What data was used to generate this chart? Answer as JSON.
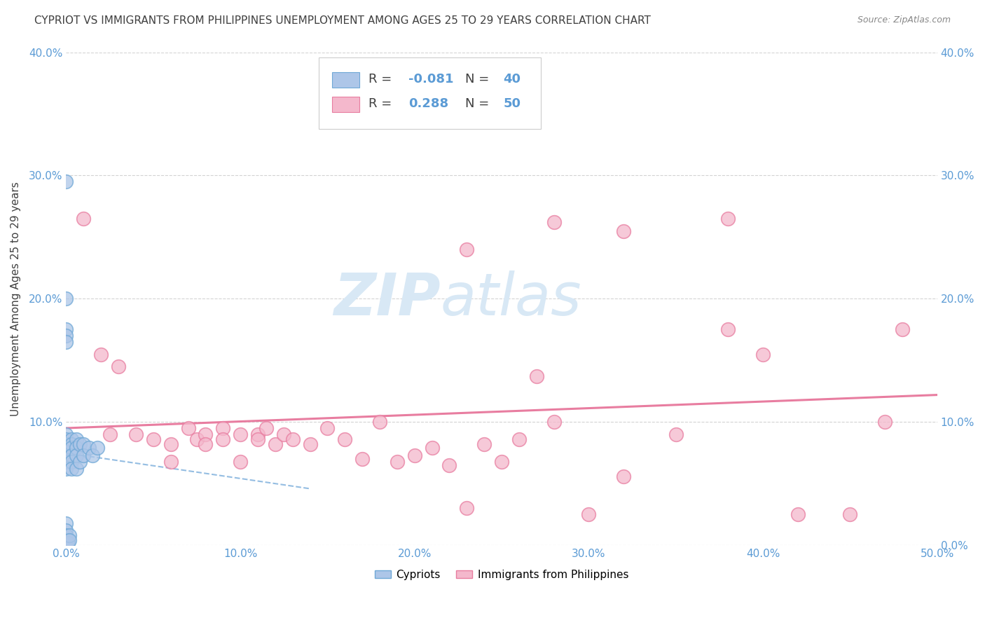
{
  "title": "CYPRIOT VS IMMIGRANTS FROM PHILIPPINES UNEMPLOYMENT AMONG AGES 25 TO 29 YEARS CORRELATION CHART",
  "source": "Source: ZipAtlas.com",
  "ylabel": "Unemployment Among Ages 25 to 29 years",
  "xlim": [
    0.0,
    0.5
  ],
  "ylim": [
    0.0,
    0.4
  ],
  "xticks": [
    0.0,
    0.1,
    0.2,
    0.3,
    0.4,
    0.5
  ],
  "yticks": [
    0.0,
    0.1,
    0.2,
    0.3,
    0.4
  ],
  "xticklabels": [
    "0.0%",
    "10.0%",
    "20.0%",
    "30.0%",
    "40.0%",
    "50.0%"
  ],
  "ylabels_left": [
    "",
    "10.0%",
    "20.0%",
    "30.0%",
    "40.0%"
  ],
  "ylabels_right": [
    "0.0%",
    "10.0%",
    "20.0%",
    "30.0%",
    "40.0%"
  ],
  "color_cypriot_fill": "#adc6e8",
  "color_cypriot_edge": "#6fa8d6",
  "color_philippines_fill": "#f4b8cc",
  "color_philippines_edge": "#e87da0",
  "color_trend_cypriot": "#7aaddb",
  "color_trend_philippines": "#e87da0",
  "axis_color": "#5b9bd5",
  "grid_color": "#c8c8c8",
  "background_color": "#ffffff",
  "title_color": "#404040",
  "source_color": "#888888",
  "watermark_color": "#d8e8f5",
  "cypriot_x": [
    0.0,
    0.0,
    0.0,
    0.0,
    0.0,
    0.0,
    0.0,
    0.0,
    0.0,
    0.0,
    0.0,
    0.0,
    0.0,
    0.003,
    0.003,
    0.003,
    0.003,
    0.003,
    0.003,
    0.006,
    0.006,
    0.006,
    0.006,
    0.008,
    0.008,
    0.01,
    0.01,
    0.013,
    0.015,
    0.018,
    0.0,
    0.0,
    0.0,
    0.0,
    0.0,
    0.0,
    0.001,
    0.001,
    0.002,
    0.002
  ],
  "cypriot_y": [
    0.295,
    0.2,
    0.175,
    0.17,
    0.165,
    0.09,
    0.086,
    0.082,
    0.079,
    0.076,
    0.073,
    0.068,
    0.062,
    0.086,
    0.082,
    0.079,
    0.073,
    0.068,
    0.062,
    0.086,
    0.079,
    0.073,
    0.062,
    0.082,
    0.068,
    0.082,
    0.073,
    0.079,
    0.073,
    0.079,
    0.018,
    0.012,
    0.008,
    0.004,
    0.001,
    0.0,
    0.004,
    0.002,
    0.008,
    0.004
  ],
  "philippines_x": [
    0.01,
    0.02,
    0.025,
    0.03,
    0.04,
    0.05,
    0.06,
    0.06,
    0.07,
    0.075,
    0.08,
    0.08,
    0.09,
    0.09,
    0.1,
    0.1,
    0.11,
    0.11,
    0.115,
    0.12,
    0.125,
    0.13,
    0.14,
    0.15,
    0.16,
    0.17,
    0.18,
    0.19,
    0.2,
    0.21,
    0.22,
    0.23,
    0.24,
    0.25,
    0.26,
    0.27,
    0.28,
    0.3,
    0.32,
    0.35,
    0.38,
    0.4,
    0.42,
    0.45,
    0.47,
    0.48,
    0.23,
    0.28,
    0.32,
    0.38
  ],
  "philippines_y": [
    0.265,
    0.155,
    0.09,
    0.145,
    0.09,
    0.086,
    0.082,
    0.068,
    0.095,
    0.086,
    0.09,
    0.082,
    0.095,
    0.086,
    0.09,
    0.068,
    0.09,
    0.086,
    0.095,
    0.082,
    0.09,
    0.086,
    0.082,
    0.095,
    0.086,
    0.07,
    0.1,
    0.068,
    0.073,
    0.079,
    0.065,
    0.03,
    0.082,
    0.068,
    0.086,
    0.137,
    0.1,
    0.025,
    0.056,
    0.09,
    0.175,
    0.155,
    0.025,
    0.025,
    0.1,
    0.175,
    0.24,
    0.262,
    0.255,
    0.265
  ],
  "trend_cyp_x0": 0.0,
  "trend_cyp_x1": 0.14,
  "trend_phil_x0": 0.0,
  "trend_phil_x1": 0.5
}
